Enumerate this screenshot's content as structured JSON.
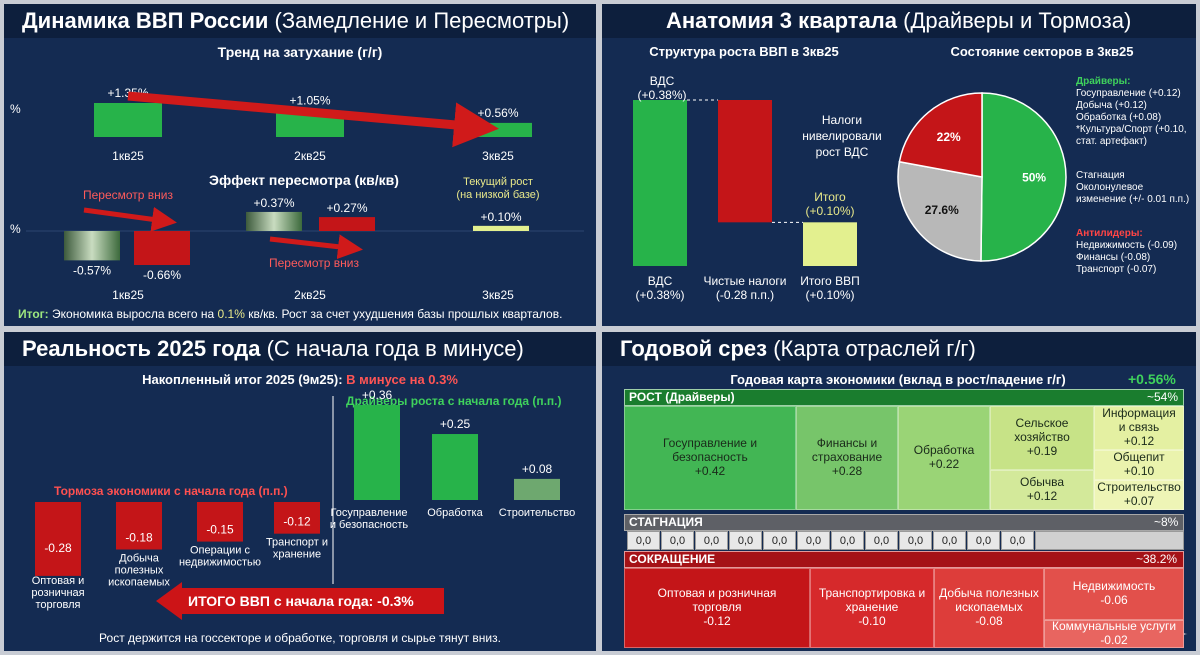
{
  "panel1": {
    "title_bold": "Динамика ВВП России",
    "title_rest": "(Замедление и Пересмотры)",
    "trend_title": "Тренд на затухание (г/г)",
    "pct_symbol": "%",
    "effect_title": "Эффект пересмотра (кв/кв)",
    "note_down1": "Пересмотр вниз",
    "note_down2": "Пересмотр вниз",
    "current_note_1": "Текущий рост",
    "current_note_2": "(на низкой базе)",
    "summary_label": "Итог:",
    "summary_a": "Экономика выросла всего на ",
    "summary_hl": "0.1%",
    "summary_b": " кв/кв. Рост за счет ухудшения базы прошлых кварталов."
  },
  "panel2": {
    "title_bold": "Анатомия 3 квартала",
    "title_rest": "(Драйверы и Тормоза)",
    "struct_title": "Структура роста ВВП в 3кв25",
    "top_label_1": "ВДС",
    "top_label_2": "(+0.38%)",
    "note_1": "Налоги",
    "note_2": "нивелировали",
    "note_3": "рост ВДС",
    "total_label_1": "Итого",
    "total_label_2": "(+0.10%)",
    "sectors_title": "Состояние секторов в 3кв25",
    "drivers_head": "Драйверы:",
    "drivers": [
      "Госуправление (+0.12)",
      "Добыча (+0.12)",
      "Обработка (+0.08)",
      "*Культура/Спорт (+0.10,",
      "стат. артефакт)"
    ],
    "stag_head_1": "Стагнация",
    "stag_head_2": "Околонулевое",
    "stag_head_3": "изменение (+/- 0.01 п.п.)",
    "anti_head": "Антилидеры:",
    "anti": [
      "Недвижимость (-0.09)",
      "Финансы (-0.08)",
      "Транспорт (-0.07)"
    ]
  },
  "panel3": {
    "title_bold": "Реальность 2025 года",
    "title_rest": "(С начала года в минусе)",
    "acc_label": "Накопленный итог 2025 (9м25):",
    "acc_value": "В минусе на 0.3%",
    "drivers_head": "Драйверы роста с начала года (п.п.)",
    "brakes_head": "Тормоза экономики с начала года (п.п.)",
    "total_arrow": "ИТОГО ВВП с начала года: -0.3%",
    "footer": "Рост держится на госсекторе и обработке, торговля и сырье тянут вниз."
  },
  "panel4": {
    "title_bold": "Годовой срез",
    "title_rest": "(Карта отраслей г/г)",
    "map_title": "Годовая карта экономики (вклад в рост/падение г/г)",
    "total": "+0.56%",
    "growth_head": "РОСТ (Драйверы)",
    "growth_share": "~54%",
    "stag_head": "СТАГНАЦИЯ",
    "stag_share": "~8%",
    "stag_cells": [
      "0,0",
      "0,0",
      "0,0",
      "0,0",
      "0,0",
      "0,0",
      "0,0",
      "0,0",
      "0,0",
      "0,0",
      "0,0",
      "0,0"
    ],
    "decline_head": "СОКРАЩЕНИЕ",
    "decline_share": "~38.2%",
    "growth_cells": [
      {
        "name_1": "Госуправление и",
        "name_2": "безопасность",
        "value": "+0.42"
      },
      {
        "name_1": "Финансы и",
        "name_2": "страхование",
        "value": "+0.28"
      },
      {
        "name_1": "Обработка",
        "name_2": "",
        "value": "+0.22"
      },
      {
        "name_1": "Сельское",
        "name_2": "хозяйство",
        "value": "+0.19"
      },
      {
        "name_1": "Обычва",
        "name_2": "",
        "value": "+0.12"
      },
      {
        "name_1": "Информация",
        "name_2": "и связь",
        "value": "+0.12"
      },
      {
        "name_1": "Общепит",
        "name_2": "",
        "value": "+0.10"
      },
      {
        "name_1": "Строительство",
        "name_2": "",
        "value": "+0.07"
      }
    ],
    "decline_cells": [
      {
        "name_1": "Оптовая и розничная",
        "name_2": "торговля",
        "value": "-0.12"
      },
      {
        "name_1": "Транспортировка и",
        "name_2": "хранение",
        "value": "-0.10"
      },
      {
        "name_1": "Добыча полезных",
        "name_2": "ископаемых",
        "value": "-0.08"
      },
      {
        "name_1": "Недвижимость",
        "name_2": "",
        "value": "-0.06"
      },
      {
        "name_1": "Коммунальные услуги",
        "name_2": "",
        "value": "-0.02"
      }
    ]
  },
  "colors": {
    "green": "#27b34a",
    "red": "#c41518",
    "pale": "#e3f08f",
    "grey": "#b8b8b8",
    "navy": "#142b52"
  },
  "chart_data": [
    {
      "type": "bar",
      "title": "Тренд на затухание (г/г)",
      "ylabel": "%",
      "categories": [
        "1кв25",
        "2кв25",
        "3кв25"
      ],
      "values": [
        1.35,
        1.05,
        0.56
      ],
      "value_labels": [
        "+1.35%",
        "+1.05%",
        "+0.56%"
      ]
    },
    {
      "type": "bar",
      "title": "Эффект пересмотра (кв/кв)",
      "ylabel": "%",
      "categories": [
        "1кв25",
        "2кв25",
        "3кв25"
      ],
      "series": [
        {
          "values": [
            -0.57,
            0.37,
            null
          ],
          "value_labels": [
            "-0.57%",
            "+0.37%",
            ""
          ]
        },
        {
          "values": [
            -0.66,
            0.27,
            0.1
          ],
          "value_labels": [
            "-0.66%",
            "+0.27%",
            "+0.10%"
          ]
        }
      ]
    },
    {
      "type": "bar",
      "title": "Структура роста ВВП в 3кв25",
      "categories": [
        "ВДС (+0.38%)",
        "Чистые налоги (-0.28 п.п.)",
        "Итого ВВП (+0.10%)"
      ],
      "values": [
        0.38,
        -0.28,
        0.1
      ],
      "cat_lines": [
        [
          "ВДС",
          "(+0.38%)"
        ],
        [
          "Чистые налоги",
          "(-0.28 п.п.)"
        ],
        [
          "Итого ВВП",
          "(+0.10%)"
        ]
      ]
    },
    {
      "type": "pie",
      "title": "Состояние секторов в 3кв25",
      "values": [
        50,
        27.6,
        22
      ],
      "value_labels": [
        "50%",
        "27.6%",
        "22%"
      ]
    },
    {
      "type": "bar",
      "title": "Накопленный итог 2025 (9м25)",
      "categories": [
        "Оптовая и розничная торговля",
        "Добыча полезных ископаемых",
        "Операции с недвижимостью",
        "Транспорт и хранение",
        "Госуправление и безопасность",
        "Обработка",
        "Строительство"
      ],
      "values": [
        -0.28,
        -0.18,
        -0.15,
        -0.12,
        0.36,
        0.25,
        0.08
      ],
      "value_labels": [
        "-0.28",
        "-0.18",
        "-0.15",
        "-0.12",
        "+0.36",
        "+0.25",
        "+0.08"
      ],
      "cat_lines": [
        [
          "Оптовая и",
          "розничная",
          "торговля"
        ],
        [
          "Добыча",
          "полезных",
          "ископаемых"
        ],
        [
          "Операции с",
          "недвижимостью"
        ],
        [
          "Транспорт и",
          "хранение"
        ],
        [
          "Госуправление",
          "и безопасность"
        ],
        [
          "Обработка"
        ],
        [
          "Строительство"
        ]
      ]
    },
    {
      "type": "heatmap",
      "title": "Годовая карта экономики (вклад в рост/падение г/г)",
      "categories": [
        "Госуправление и безопасность",
        "Финансы и страхование",
        "Обработка",
        "Сельское хозяйство",
        "Обычва",
        "Информация и связь",
        "Общепит",
        "Строительство",
        "Оптовая и розничная торговля",
        "Транспортировка и хранение",
        "Добыча полезных ископаемых",
        "Недвижимость",
        "Коммунальные услуги"
      ],
      "values": [
        0.42,
        0.28,
        0.22,
        0.19,
        0.12,
        0.12,
        0.1,
        0.07,
        -0.12,
        -0.1,
        -0.08,
        -0.06,
        -0.02
      ]
    }
  ]
}
